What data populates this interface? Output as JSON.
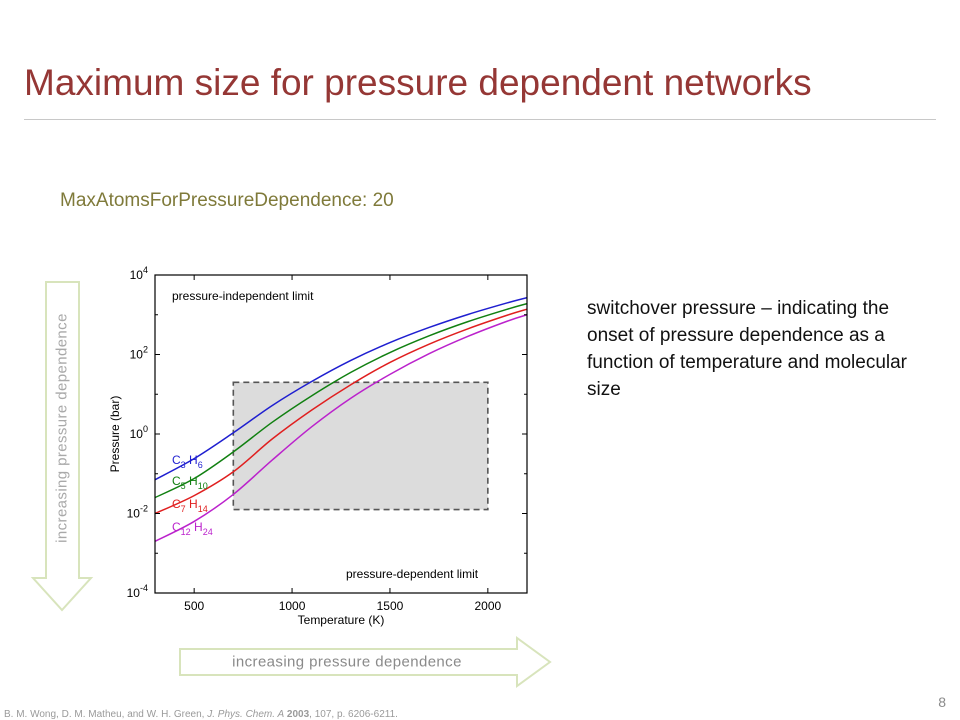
{
  "slide": {
    "title": "Maximum size for pressure dependent networks",
    "setting_text": "MaxAtomsForPressureDependence: 20",
    "description": "switchover pressure – indicating the onset of pressure dependence as a function of temperature and molecular size",
    "vertical_arrow_label": "increasing pressure dependence",
    "horizontal_arrow_label": "increasing pressure dependence",
    "reference": {
      "authors": "B. M. Wong, D. M. Matheu, and W. H. Green, ",
      "journal": "J. Phys. Chem. A",
      "year": "2003",
      "details": ", 107, p. 6206-6211."
    },
    "page_number": "8",
    "colors": {
      "title": "#953735",
      "setting": "#7f7a3a",
      "arrow_outline": "#d8e4bc"
    }
  },
  "chart_data": {
    "type": "line",
    "xlabel": "Temperature (K)",
    "ylabel": "Pressure (bar)",
    "xlim": [
      300,
      2200
    ],
    "ylim_log10": [
      -4,
      4
    ],
    "y_scale": "log",
    "x_ticks": [
      500,
      1000,
      1500,
      2000
    ],
    "y_ticks": [
      {
        "base": "10",
        "exp": "4",
        "value": 4
      },
      {
        "base": "10",
        "exp": "2",
        "value": 2
      },
      {
        "base": "10",
        "exp": "0",
        "value": 0
      },
      {
        "base": "10",
        "exp": "-2",
        "value": -2
      },
      {
        "base": "10",
        "exp": "-4",
        "value": -4
      }
    ],
    "annotations": {
      "top": "pressure-independent limit",
      "bottom": "pressure-dependent limit"
    },
    "region": {
      "x": [
        700,
        2000
      ],
      "y_log10": [
        1.3,
        -1.9
      ],
      "fill": "#dcdcdc",
      "edge": "#555555"
    },
    "series": [
      {
        "name": "C3H6",
        "sub1": "3",
        "sub2": "6",
        "color": "#1f1fd0",
        "x": [
          300,
          500,
          700,
          900,
          1100,
          1300,
          1500,
          1700,
          1900,
          2100,
          2200
        ],
        "log10_p": [
          -1.15,
          -0.62,
          0.03,
          0.72,
          1.32,
          1.85,
          2.3,
          2.68,
          3.01,
          3.3,
          3.43
        ]
      },
      {
        "name": "C5H10",
        "sub1": "5",
        "sub2": "10",
        "color": "#118011",
        "x": [
          300,
          500,
          700,
          900,
          1100,
          1300,
          1500,
          1700,
          1900,
          2100,
          2200
        ],
        "log10_p": [
          -1.6,
          -1.12,
          -0.45,
          0.3,
          0.96,
          1.55,
          2.05,
          2.47,
          2.83,
          3.14,
          3.28
        ]
      },
      {
        "name": "C7H14",
        "sub1": "7",
        "sub2": "14",
        "color": "#e01f1f",
        "x": [
          300,
          500,
          700,
          900,
          1100,
          1300,
          1500,
          1700,
          1900,
          2100,
          2200
        ],
        "log10_p": [
          -2.0,
          -1.55,
          -0.95,
          -0.12,
          0.6,
          1.24,
          1.8,
          2.26,
          2.65,
          2.99,
          3.14
        ]
      },
      {
        "name": "C12H24",
        "sub1": "12",
        "sub2": "24",
        "color": "#bb22cc",
        "x": [
          300,
          500,
          700,
          900,
          1100,
          1300,
          1500,
          1700,
          1900,
          2100,
          2200
        ],
        "log10_p": [
          -2.7,
          -2.2,
          -1.52,
          -0.65,
          0.18,
          0.9,
          1.5,
          2.02,
          2.46,
          2.84,
          3.0
        ]
      }
    ]
  }
}
